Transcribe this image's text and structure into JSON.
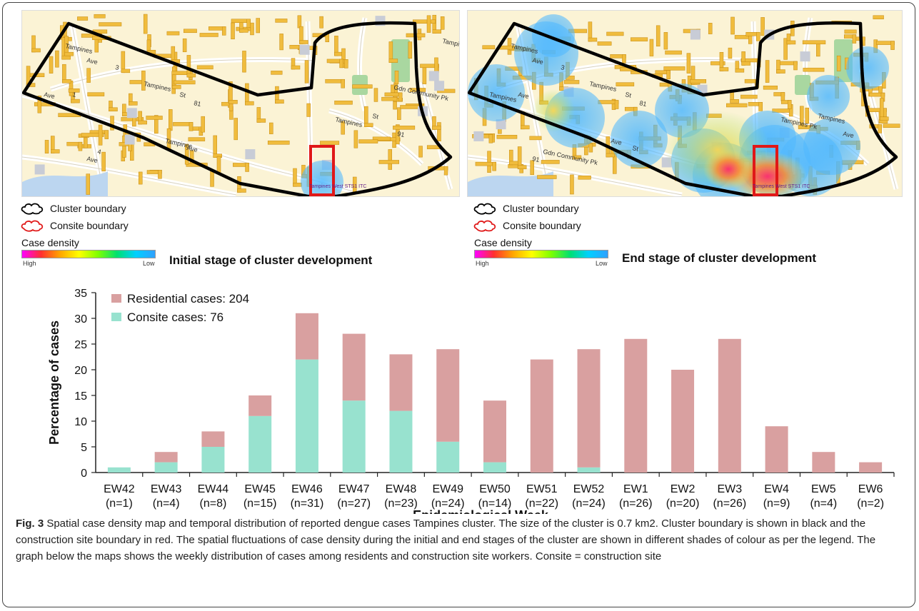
{
  "maps": {
    "left": {
      "stage_title": "Initial stage of cluster development",
      "street_labels": [
        "Tampines",
        "Ave",
        "3",
        "Tampines",
        "St",
        "81",
        "Ave",
        "1",
        "Tampines",
        "Ave",
        "Ave",
        "4",
        "Tampines",
        "St",
        "91",
        "Gdn Community Pk",
        "Tampines Pk"
      ],
      "site_label": "Tampines West STS1 ITC"
    },
    "right": {
      "stage_title": "End stage of cluster development",
      "street_labels": [
        "Tampines",
        "Ave",
        "3",
        "Tampines",
        "St",
        "81",
        "Tampines",
        "Ave",
        "Ave",
        "St",
        "91",
        "Gdn Community Pk",
        "Tampines Pk",
        "Tampines",
        "Ave"
      ],
      "site_label": "Tampines West STS1 ITC"
    },
    "legend": {
      "cluster_boundary": "Cluster boundary",
      "consite_boundary": "Consite boundary",
      "case_density": "Case density",
      "high": "High",
      "low": "Low"
    }
  },
  "colors": {
    "residential": "#d9a0a0",
    "consite": "#98e2cf",
    "map_bg": "#fbf3d5",
    "building": "#f0bc3d",
    "cluster_line": "#000000",
    "consite_line": "#e01818"
  },
  "chart_data": {
    "type": "bar",
    "stacked": true,
    "categories": [
      "EW42",
      "EW43",
      "EW44",
      "EW45",
      "EW46",
      "EW47",
      "EW48",
      "EW49",
      "EW50",
      "EW51",
      "EW52",
      "EW1",
      "EW2",
      "EW3",
      "EW4",
      "EW5",
      "EW6"
    ],
    "category_counts": [
      "(n=1)",
      "(n=4)",
      "(n=8)",
      "(n=15)",
      "(n=31)",
      "(n=27)",
      "(n=23)",
      "(n=24)",
      "(n=14)",
      "(n=22)",
      "(n=24)",
      "(n=26)",
      "(n=20)",
      "(n=26)",
      "(n=9)",
      "(n=4)",
      "(n=2)"
    ],
    "series": [
      {
        "name": "Residential cases:",
        "total": "204",
        "values": [
          0,
          2,
          3,
          4,
          9,
          13,
          11,
          18,
          12,
          22,
          23,
          26,
          20,
          26,
          9,
          4,
          2
        ]
      },
      {
        "name": "Consite cases:",
        "total": "76",
        "values": [
          1,
          2,
          5,
          11,
          22,
          14,
          12,
          6,
          2,
          0,
          1,
          0,
          0,
          0,
          0,
          0,
          0
        ]
      }
    ],
    "xlabel": "Epidemiological Week",
    "ylabel": "Percentage of cases",
    "ylim": [
      0,
      35
    ],
    "yticks": [
      0,
      5,
      10,
      15,
      20,
      25,
      30,
      35
    ],
    "legend_position": "top-left",
    "grid": false
  },
  "caption": {
    "fig_label": "Fig. 3",
    "text": " Spatial case density map and temporal distribution of reported dengue cases Tampines cluster. The size of the cluster is 0.7 km2. Cluster boundary is shown in black and the construction site boundary in red. The spatial fluctuations of case density during the initial and end stages of the cluster are shown in different shades of colour as per the legend. The graph below the maps shows the weekly distribution of cases among residents and construction site workers. Consite = construction site"
  }
}
